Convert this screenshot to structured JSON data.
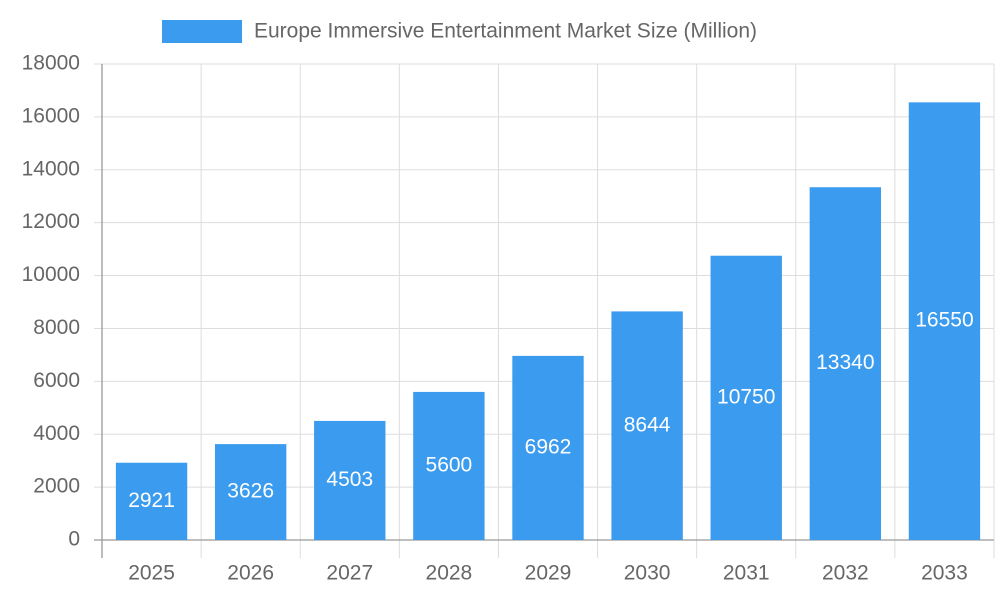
{
  "chart_data": {
    "type": "bar",
    "categories": [
      "2025",
      "2026",
      "2027",
      "2028",
      "2029",
      "2030",
      "2031",
      "2032",
      "2033"
    ],
    "series": [
      {
        "name": "Europe Immersive Entertainment Market Size (Million)",
        "color": "#3a9bef",
        "values": [
          2921,
          3626,
          4503,
          5600,
          6962,
          8644,
          10750,
          13340,
          16550
        ]
      }
    ],
    "ylim": [
      0,
      18000
    ],
    "yticks": [
      0,
      2000,
      4000,
      6000,
      8000,
      10000,
      12000,
      14000,
      16000,
      18000
    ],
    "grid": true,
    "legend": "top",
    "data_labels": true
  }
}
